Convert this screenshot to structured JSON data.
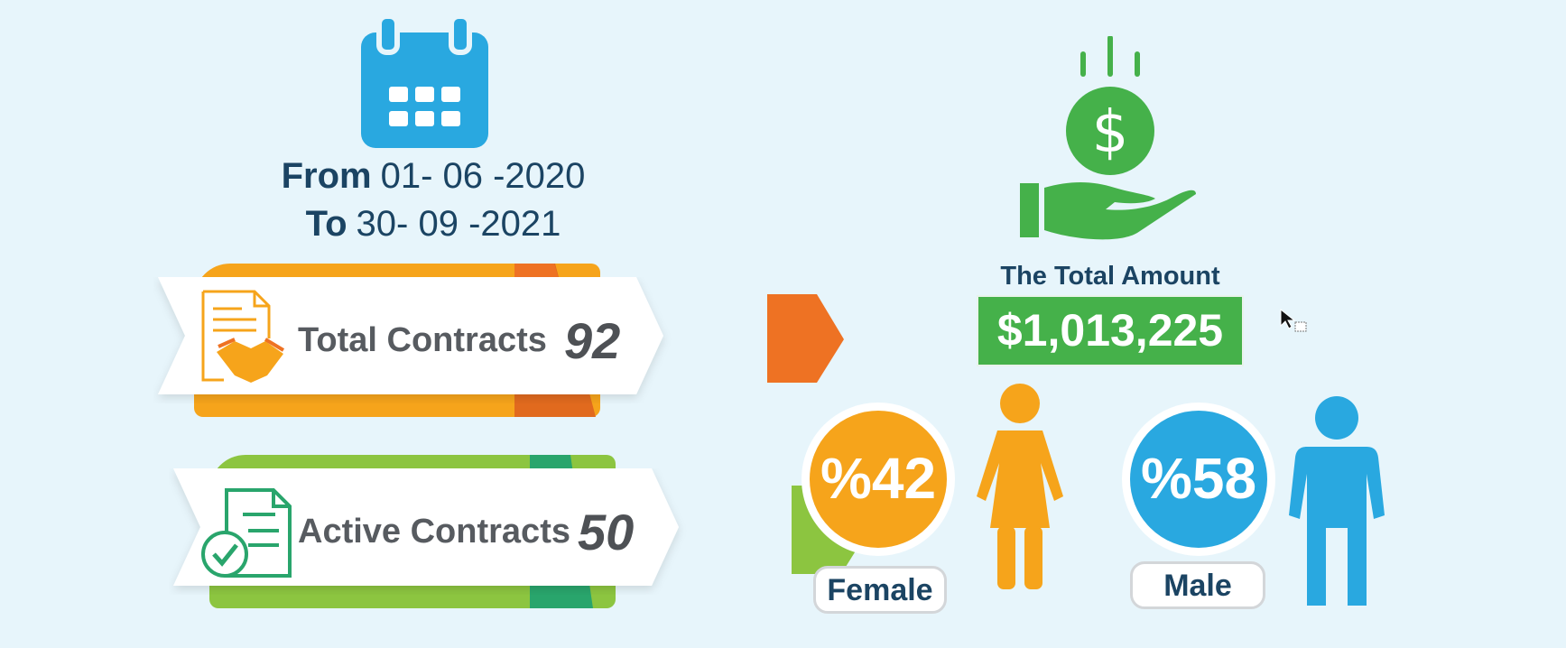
{
  "date_range": {
    "from_label": "From",
    "from_date": "01- 06 -2020",
    "to_label": "To",
    "to_date": "30- 09 -2021"
  },
  "contracts": {
    "total": {
      "label": "Total Contracts",
      "value": "92",
      "icon": "contract-handshake-icon"
    },
    "active": {
      "label": "Active Contracts",
      "value": "50",
      "icon": "document-check-icon"
    }
  },
  "amount": {
    "title": "The Total Amount",
    "value": "$1,013,225",
    "icon": "money-hand-icon"
  },
  "gender": {
    "female": {
      "percent": "%42",
      "label": "Female",
      "icon": "female-figure-icon"
    },
    "male": {
      "percent": "%58",
      "label": "Male",
      "icon": "male-figure-icon"
    }
  },
  "colors": {
    "background": "#e7f5fb",
    "navy": "#1b4463",
    "calendar_blue": "#29a8e0",
    "orange": "#f6a41b",
    "dark_orange": "#ee7223",
    "green": "#45b14a",
    "light_green": "#8cc540",
    "teal_green": "#29a56c",
    "male_blue": "#29a8e0"
  }
}
